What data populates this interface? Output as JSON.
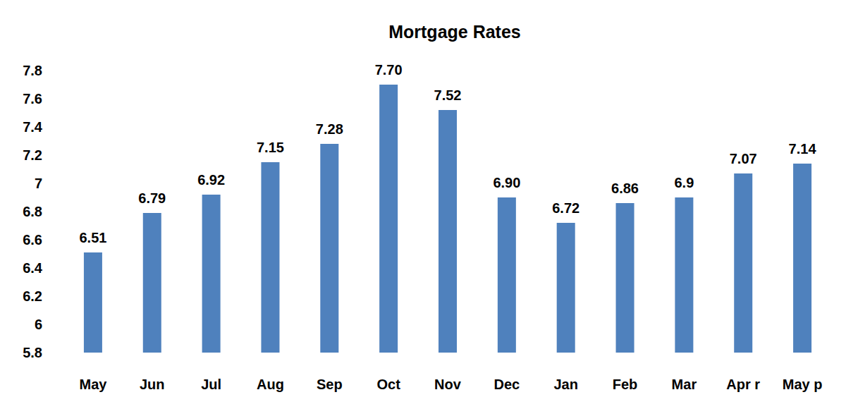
{
  "chart_data": {
    "type": "bar",
    "title": "Mortgage Rates",
    "categories": [
      "May",
      "Jun",
      "Jul",
      "Aug",
      "Sep",
      "Oct",
      "Nov",
      "Dec",
      "Jan",
      "Feb",
      "Mar",
      "Apr r",
      "May p"
    ],
    "values": [
      6.51,
      6.79,
      6.92,
      7.15,
      7.28,
      7.7,
      7.52,
      6.9,
      6.72,
      6.86,
      6.9,
      7.07,
      7.14
    ],
    "value_labels": [
      "6.51",
      "6.79",
      "6.92",
      "7.15",
      "7.28",
      "7.70",
      "7.52",
      "6.90",
      "6.72",
      "6.86",
      "6.9",
      "7.07",
      "7.14"
    ],
    "color": "#4f81bd",
    "ylim": [
      5.8,
      7.8
    ],
    "yticks": [
      5.8,
      6,
      6.2,
      6.4,
      6.6,
      6.8,
      7,
      7.2,
      7.4,
      7.6,
      7.8
    ],
    "grid": false,
    "data_labels": true
  }
}
